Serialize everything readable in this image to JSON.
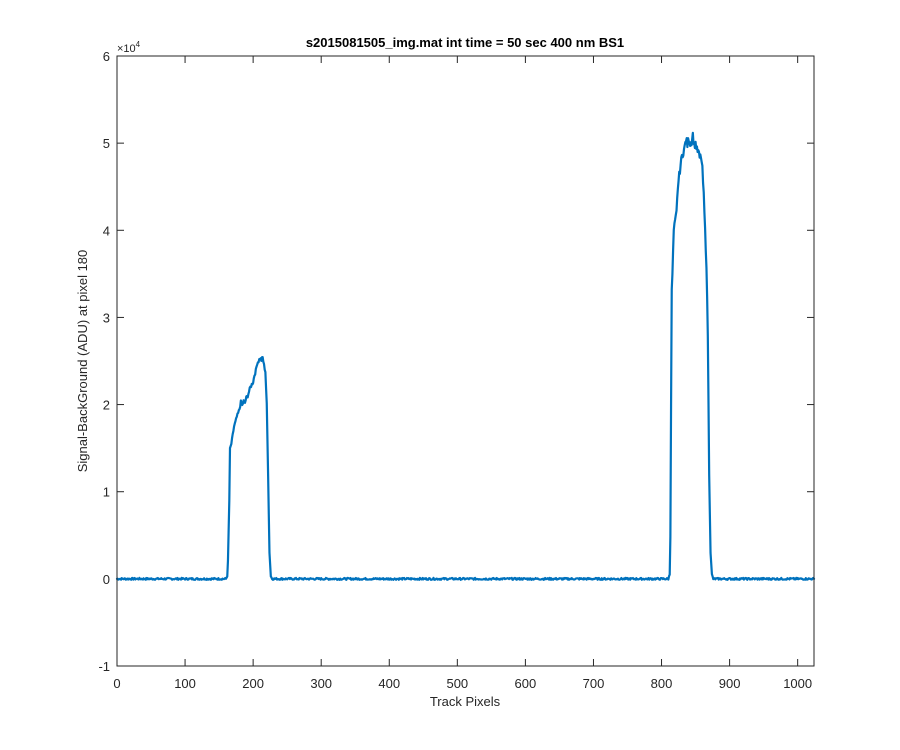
{
  "chart_data": {
    "type": "line",
    "title": "s2015081505_img.mat int time = 50 sec  400 nm BS1",
    "xlabel": "Track Pixels",
    "ylabel": "Signal-BackGround (ADU) at pixel 180",
    "xlim": [
      0,
      1024
    ],
    "ylim": [
      -10000,
      60000
    ],
    "x_ticks": [
      0,
      100,
      200,
      300,
      400,
      500,
      600,
      700,
      800,
      900,
      1000
    ],
    "x_tick_labels": [
      "0",
      "100",
      "200",
      "300",
      "400",
      "500",
      "600",
      "700",
      "800",
      "900",
      "1000"
    ],
    "y_ticks": [
      -10000,
      0,
      10000,
      20000,
      30000,
      40000,
      50000,
      60000
    ],
    "y_tick_labels": [
      "-1",
      "0",
      "1",
      "2",
      "3",
      "4",
      "5",
      "6"
    ],
    "y_multiplier": {
      "base": "×10",
      "exponent": "4"
    },
    "grid": false,
    "box": true,
    "series": [
      {
        "color": "#0072bd",
        "x": [
          0,
          160,
          162,
          163,
          165,
          166,
          168,
          170,
          172,
          174,
          176,
          178,
          180,
          182,
          184,
          186,
          188,
          190,
          192,
          194,
          196,
          198,
          200,
          202,
          204,
          206,
          208,
          210,
          212,
          214,
          216,
          218,
          220,
          222,
          224,
          226,
          228,
          230,
          232,
          235,
          300,
          400,
          500,
          600,
          700,
          800,
          810,
          812,
          813,
          814,
          815,
          816,
          818,
          820,
          822,
          824,
          826,
          828,
          830,
          832,
          834,
          836,
          838,
          840,
          842,
          844,
          846,
          848,
          850,
          852,
          854,
          856,
          858,
          860,
          862,
          864,
          866,
          868,
          870,
          872,
          874,
          876,
          878,
          880,
          900,
          1000,
          1024
        ],
        "y": [
          0,
          0,
          300,
          2000,
          9000,
          14900,
          15500,
          16500,
          17500,
          18000,
          18600,
          19000,
          19500,
          20300,
          19900,
          20400,
          20200,
          20800,
          21000,
          21500,
          22000,
          22300,
          22600,
          23400,
          23900,
          24800,
          25000,
          25300,
          25100,
          25400,
          24500,
          23800,
          20000,
          12000,
          3000,
          300,
          0,
          0,
          0,
          0,
          0,
          0,
          0,
          0,
          0,
          0,
          0,
          500,
          5000,
          20000,
          33000,
          35000,
          40000,
          41000,
          42000,
          45000,
          46300,
          47500,
          48500,
          49000,
          49500,
          50500,
          49800,
          50600,
          50000,
          50200,
          51000,
          49700,
          50000,
          49200,
          49000,
          48300,
          48500,
          47000,
          44000,
          40000,
          36000,
          28000,
          12000,
          3000,
          500,
          0,
          0,
          0,
          0,
          0,
          0
        ]
      }
    ]
  }
}
